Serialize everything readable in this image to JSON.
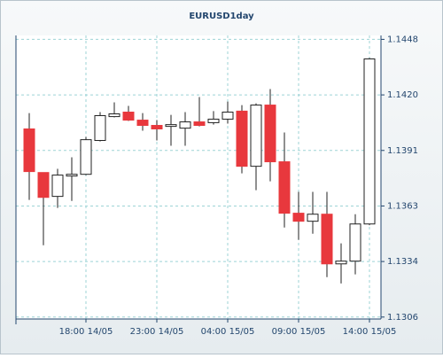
{
  "chart_data": {
    "type": "candlestick",
    "title": "EURUSD1day",
    "categories": [
      null,
      null,
      null,
      null,
      "18:00 14/05",
      null,
      null,
      null,
      null,
      "23:00 14/05",
      null,
      null,
      null,
      null,
      "04:00 15/05",
      null,
      null,
      null,
      null,
      "09:00 15/05",
      null,
      null,
      null,
      null,
      "14:00 15/05"
    ],
    "open": [
      1.14022,
      1.13799,
      1.13677,
      1.13781,
      1.1379,
      1.13963,
      1.14085,
      1.14108,
      1.14067,
      1.1404,
      1.14035,
      1.14026,
      1.14058,
      1.14054,
      1.14072,
      1.14113,
      1.13831,
      1.14144,
      1.13854,
      1.13591,
      1.1355,
      1.13586,
      1.13332,
      1.13346,
      1.13536
    ],
    "high": [
      1.14103,
      1.13799,
      1.13818,
      1.13877,
      1.13981,
      1.14108,
      1.14158,
      1.1414,
      1.14103,
      1.14067,
      1.14094,
      1.14108,
      1.14185,
      1.14113,
      1.14162,
      1.14144,
      1.14153,
      1.14226,
      1.14004,
      1.137,
      1.137,
      1.137,
      1.13437,
      1.13586,
      1.14385
    ],
    "low": [
      1.13659,
      1.13427,
      1.13618,
      1.13654,
      1.13786,
      1.13958,
      1.14081,
      1.14063,
      1.14013,
      1.13963,
      1.13936,
      1.13936,
      1.14035,
      1.14044,
      1.14049,
      1.13795,
      1.13709,
      1.13754,
      1.13518,
      1.13455,
      1.13486,
      1.13264,
      1.13232,
      1.13278,
      1.1353
    ],
    "close": [
      1.13804,
      1.13672,
      1.13786,
      1.1379,
      1.13967,
      1.1409,
      1.14099,
      1.14067,
      1.1404,
      1.14022,
      1.14044,
      1.14058,
      1.1404,
      1.14072,
      1.14108,
      1.13831,
      1.14144,
      1.13854,
      1.13591,
      1.1355,
      1.13586,
      1.13332,
      1.13346,
      1.13536,
      1.1438
    ],
    "up_color": "#ffffff",
    "down_color": "#e8383d",
    "grid": true,
    "ylim": [
      1.1305,
      1.145
    ],
    "yticks": [
      {
        "value": 1.1306,
        "label": "1.1306"
      },
      {
        "value": 1.13344,
        "label": "1.1334"
      },
      {
        "value": 1.13628,
        "label": "1.1363"
      },
      {
        "value": 1.13912,
        "label": "1.1391"
      },
      {
        "value": 1.14196,
        "label": "1.1420"
      },
      {
        "value": 1.1448,
        "label": "1.1448"
      }
    ]
  }
}
